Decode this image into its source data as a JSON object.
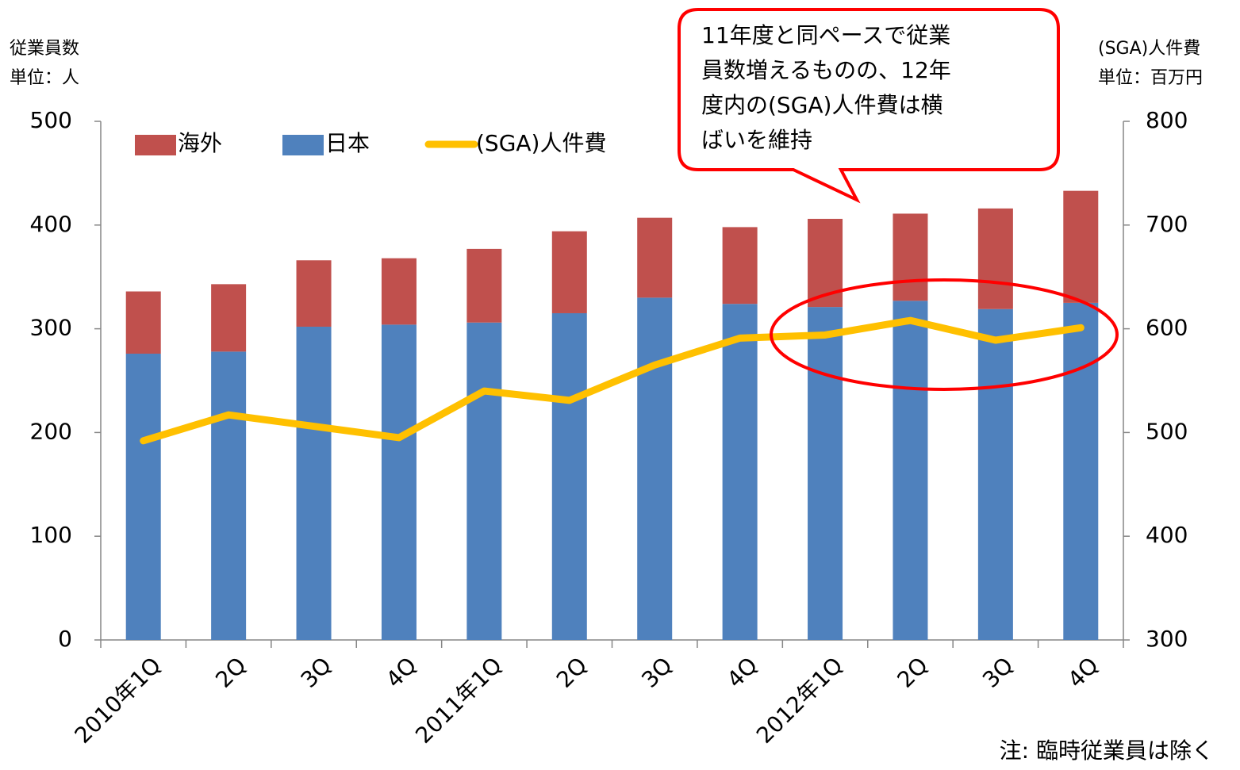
{
  "chart_data": {
    "type": "bar",
    "categories": [
      "2010年1Q",
      "2Q",
      "3Q",
      "4Q",
      "2011年1Q",
      "2Q",
      "3Q",
      "4Q",
      "2012年1Q",
      "2Q",
      "3Q",
      "4Q"
    ],
    "series": [
      {
        "name": "日本",
        "color": "#4f81bd",
        "values": [
          276,
          278,
          302,
          304,
          306,
          315,
          330,
          324,
          321,
          327,
          319,
          325
        ]
      },
      {
        "name": "海外",
        "color": "#c0504d",
        "values": [
          60,
          65,
          64,
          64,
          71,
          79,
          77,
          74,
          85,
          84,
          97,
          108
        ]
      },
      {
        "name": "(SGA)人件費",
        "color": "#ffc000",
        "type": "line",
        "axis": "y2",
        "values": [
          492,
          517,
          506,
          495,
          540,
          531,
          565,
          591,
          594,
          608,
          589,
          601
        ]
      }
    ],
    "legend_order": [
      "海外",
      "日本",
      "(SGA)人件費"
    ],
    "y_title": [
      "従業員数",
      "単位：人"
    ],
    "y2_title": [
      "(SGA)人件費",
      "単位：百万円"
    ],
    "ylim": [
      0,
      500
    ],
    "yticks": [
      0,
      100,
      200,
      300,
      400,
      500
    ],
    "y2lim": [
      300,
      800
    ],
    "y2ticks": [
      300,
      400,
      500,
      600,
      700,
      800
    ],
    "callout": [
      "11年度と同ペースで従業",
      "員数増えるものの、12年",
      "度内の(SGA)人件費は横",
      "ばいを維持"
    ],
    "note": "注: 臨時従業員は除く"
  }
}
